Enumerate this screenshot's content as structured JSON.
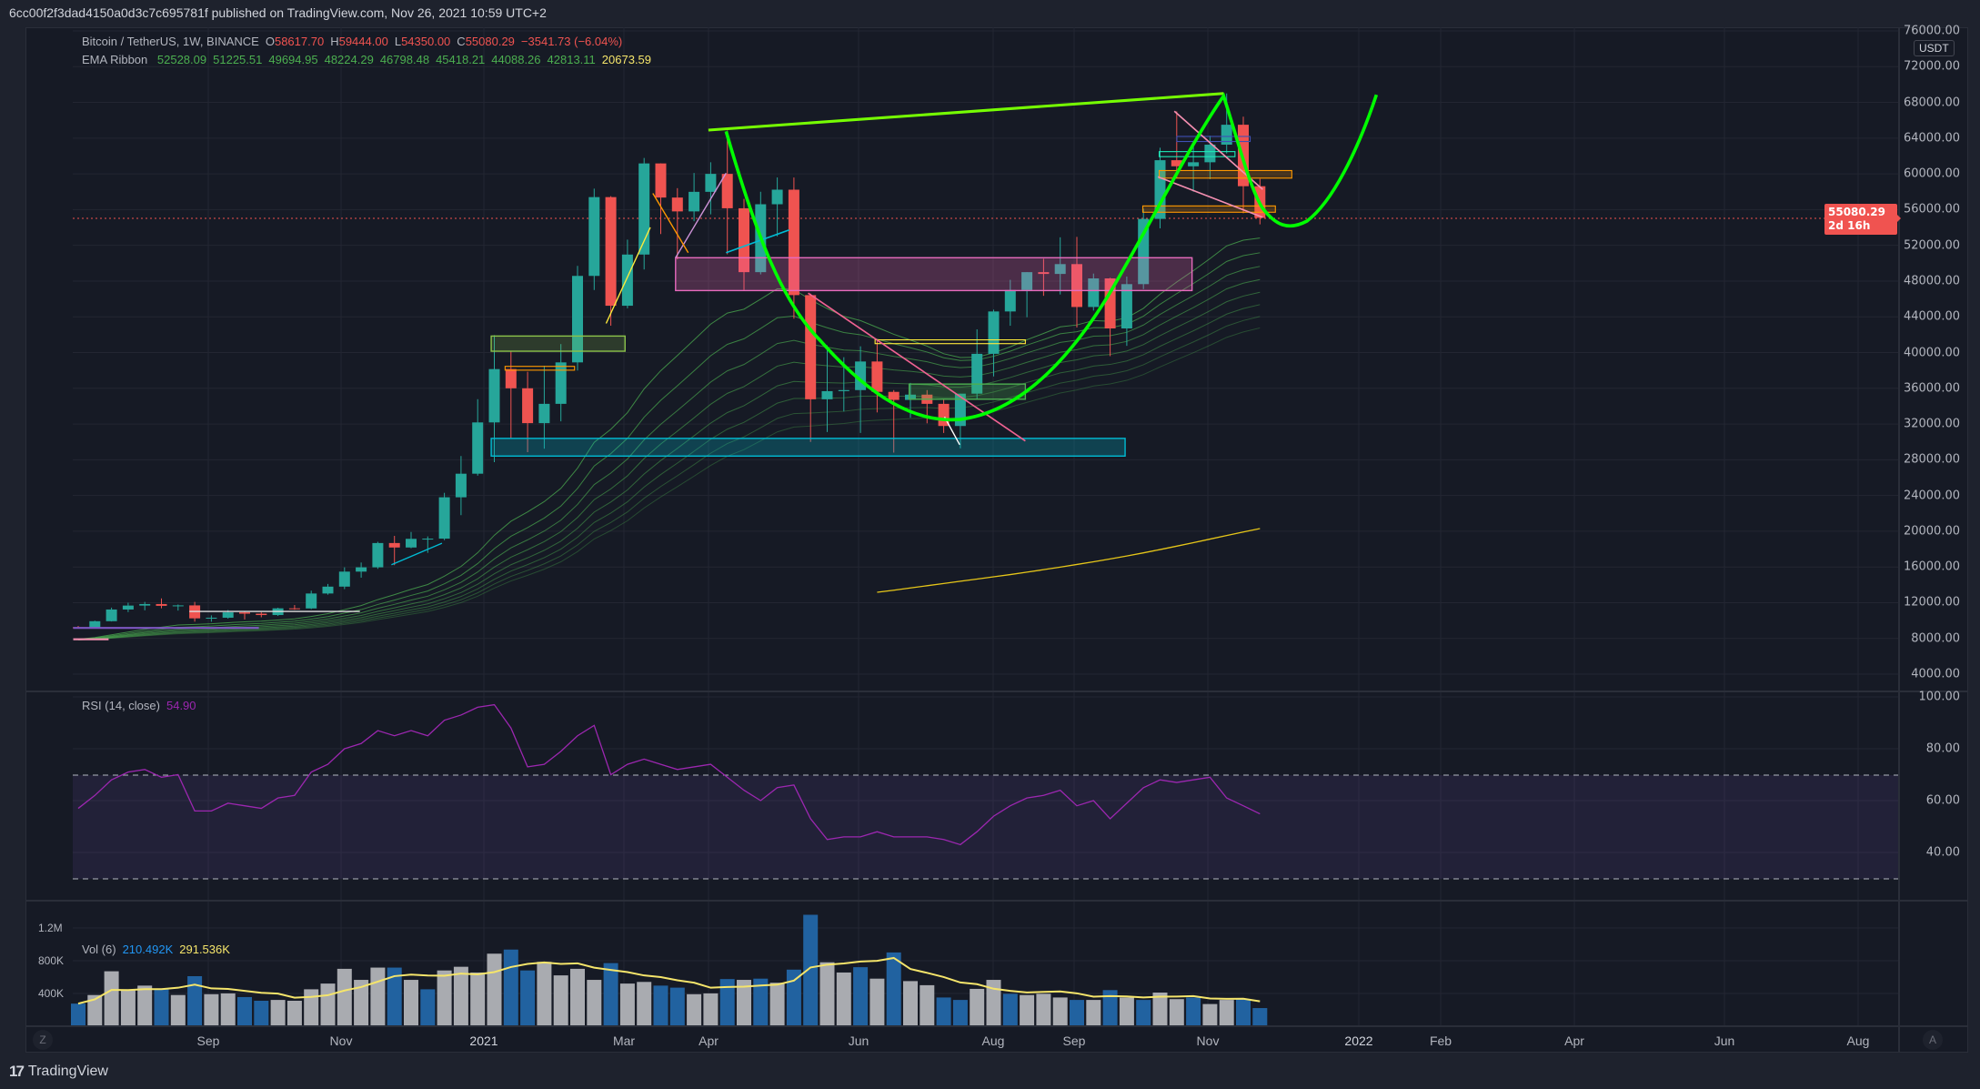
{
  "header": {
    "text": "6cc00f2f3dad4150a0d3c7c695781f published on TradingView.com, Nov 26, 2021 10:59 UTC+2"
  },
  "legend": {
    "symbol": "Bitcoin / TetherUS, 1W, BINANCE",
    "o_label": "O",
    "o": "58617.70",
    "h_label": "H",
    "h": "59444.00",
    "l_label": "L",
    "l": "54350.00",
    "c_label": "C",
    "c": "55080.29",
    "change": "−3541.73 (−6.04%)",
    "ema_label": "EMA Ribbon",
    "ema_values": [
      "52528.09",
      "51225.51",
      "49694.95",
      "48224.29",
      "46798.48",
      "45418.21",
      "44088.26",
      "42813.11",
      "20673.59"
    ]
  },
  "rsi_legend": {
    "label": "RSI (14, close)",
    "value": "54.90"
  },
  "vol_legend": {
    "label": "Vol (6)",
    "value": "210.492K",
    "ma": "291.536K"
  },
  "price_axis": {
    "currency": "USDT",
    "ticks": [
      "76000.00",
      "72000.00",
      "68000.00",
      "64000.00",
      "60000.00",
      "56000.00",
      "52000.00",
      "48000.00",
      "44000.00",
      "40000.00",
      "36000.00",
      "32000.00",
      "28000.00",
      "24000.00",
      "20000.00",
      "16000.00",
      "12000.00",
      "8000.00",
      "4000.00"
    ],
    "current_price": "55080.29",
    "countdown": "2d 16h"
  },
  "rsi_axis": {
    "ticks": [
      "100.00",
      "80.00",
      "60.00",
      "40.00"
    ]
  },
  "vol_axis": {
    "ticks": [
      "1.2M",
      "800K",
      "400K"
    ]
  },
  "time_axis": {
    "labels": [
      "Sep",
      "Nov",
      "2021",
      "Mar",
      "Apr",
      "Jun",
      "Aug",
      "Sep",
      "Nov",
      "2022",
      "Feb",
      "Apr",
      "Jun",
      "Aug"
    ]
  },
  "buttons": {
    "z": "Z",
    "a": "A"
  },
  "footer": {
    "brand": "TradingView"
  },
  "colors": {
    "up": "#26a69a",
    "down": "#ef5350",
    "rsi": "#9c27b0",
    "vol_blue": "#2162a0",
    "vol_gray": "#a9abb0",
    "vol_ma": "#f5e56b",
    "ema": "#4caf50",
    "ema_long": "#e6c619",
    "cup": "#00ff00"
  },
  "chart_data": {
    "type": "candlestick",
    "title": "Bitcoin / TetherUS, 1W, BINANCE",
    "timeframe": "1W",
    "ylim": [
      4000,
      76000
    ],
    "ohlc": [
      [
        9250,
        9400,
        9100,
        9160
      ],
      [
        9160,
        9990,
        9140,
        9930
      ],
      [
        9930,
        11450,
        9900,
        11240
      ],
      [
        11240,
        12000,
        10950,
        11680
      ],
      [
        11680,
        12090,
        11150,
        11850
      ],
      [
        11850,
        12480,
        11370,
        11650
      ],
      [
        11650,
        11800,
        11120,
        11700
      ],
      [
        11700,
        12090,
        9880,
        10250
      ],
      [
        10250,
        10580,
        9870,
        10320
      ],
      [
        10320,
        11180,
        10210,
        10920
      ],
      [
        10920,
        10990,
        10130,
        10770
      ],
      [
        10770,
        10950,
        10370,
        10620
      ],
      [
        10620,
        11440,
        10520,
        11370
      ],
      [
        11370,
        11740,
        11210,
        11360
      ],
      [
        11360,
        13350,
        11280,
        13030
      ],
      [
        13030,
        14100,
        12900,
        13800
      ],
      [
        13800,
        15960,
        13520,
        15480
      ],
      [
        15480,
        16500,
        14800,
        15960
      ],
      [
        15960,
        18820,
        15790,
        18680
      ],
      [
        18680,
        19480,
        16200,
        18180
      ],
      [
        18180,
        19920,
        18100,
        19150
      ],
      [
        19150,
        19420,
        17580,
        19170
      ],
      [
        19170,
        24300,
        19000,
        23800
      ],
      [
        23800,
        28420,
        21800,
        26440
      ],
      [
        26440,
        34780,
        26220,
        32180
      ],
      [
        32180,
        41950,
        27730,
        38150
      ],
      [
        38150,
        40100,
        30420,
        36000
      ],
      [
        36000,
        37850,
        28850,
        32100
      ],
      [
        32100,
        38530,
        29240,
        34260
      ],
      [
        34260,
        40950,
        32300,
        38900
      ],
      [
        38900,
        49700,
        37990,
        48580
      ],
      [
        48580,
        58350,
        47000,
        57400
      ],
      [
        57400,
        57500,
        43000,
        45240
      ],
      [
        45240,
        52640,
        44950,
        50970
      ],
      [
        50970,
        61780,
        49300,
        61170
      ],
      [
        61170,
        61180,
        53270,
        57350
      ],
      [
        57350,
        58400,
        50430,
        55800
      ],
      [
        55800,
        60100,
        54700,
        57990
      ],
      [
        57990,
        61300,
        55470,
        60000
      ],
      [
        60000,
        64850,
        51000,
        56150
      ],
      [
        56150,
        57200,
        47000,
        49000
      ],
      [
        49000,
        58000,
        48750,
        56600
      ],
      [
        56600,
        59600,
        53000,
        58230
      ],
      [
        58230,
        59590,
        43800,
        46430
      ],
      [
        46430,
        46600,
        30000,
        34770
      ],
      [
        34770,
        40800,
        31100,
        35680
      ],
      [
        35680,
        39480,
        33400,
        35800
      ],
      [
        35800,
        40700,
        31000,
        39000
      ],
      [
        39000,
        41300,
        33300,
        35600
      ],
      [
        35600,
        35800,
        28800,
        34700
      ],
      [
        34700,
        36600,
        32700,
        35290
      ],
      [
        35290,
        35800,
        32080,
        34260
      ],
      [
        34260,
        34700,
        31000,
        31780
      ],
      [
        31780,
        35400,
        29280,
        35400
      ],
      [
        35400,
        42600,
        34800,
        39860
      ],
      [
        39860,
        44800,
        37330,
        44600
      ],
      [
        44600,
        48140,
        43000,
        47000
      ],
      [
        47000,
        49000,
        43950,
        49000
      ],
      [
        49000,
        50500,
        46350,
        48800
      ],
      [
        48800,
        52900,
        46500,
        49900
      ],
      [
        49900,
        52950,
        42800,
        45100
      ],
      [
        45100,
        48840,
        44700,
        48300
      ],
      [
        48300,
        48370,
        39600,
        42700
      ],
      [
        42700,
        48500,
        40750,
        47660
      ],
      [
        47660,
        56100,
        47100,
        54960
      ],
      [
        54960,
        62930,
        53900,
        61530
      ],
      [
        61530,
        67000,
        59500,
        60850
      ],
      [
        60850,
        63700,
        58000,
        61300
      ],
      [
        61300,
        64270,
        59400,
        63270
      ],
      [
        63270,
        69000,
        62280,
        65500
      ],
      [
        65500,
        66400,
        55600,
        58620
      ],
      [
        58617.7,
        59444,
        54350,
        55080.29
      ]
    ],
    "ema_periods": [
      20,
      25,
      30,
      35,
      40,
      45,
      50,
      55
    ],
    "ema_long": {
      "start_index": 48,
      "values": [
        13170,
        13400,
        13650,
        13900,
        14150,
        14400,
        14650,
        14900,
        15150,
        15420,
        15700,
        15980,
        16280,
        16580,
        16900,
        17230,
        17580,
        17950,
        18330,
        18720,
        19120,
        19520,
        19920,
        20300
      ]
    },
    "rsi": {
      "period": 14,
      "upper": 70,
      "lower": 30,
      "values": [
        57,
        62,
        68,
        71,
        72,
        69,
        70,
        56,
        56,
        59,
        58,
        57,
        61,
        62,
        71,
        74,
        80,
        82,
        87,
        85,
        87,
        85,
        91,
        93,
        96,
        97,
        88,
        73,
        74,
        79,
        85,
        89,
        70,
        74,
        76,
        74,
        72,
        73,
        74,
        69,
        64,
        60,
        65,
        66,
        53,
        45,
        46,
        46,
        48,
        46,
        46,
        46,
        45,
        43,
        48,
        54,
        58,
        61,
        62,
        64,
        58,
        60,
        53,
        59,
        65,
        68,
        67,
        68,
        69,
        61,
        58,
        54.9
      ]
    },
    "volume_k": [
      265,
      370,
      660,
      430,
      485,
      440,
      370,
      600,
      380,
      390,
      345,
      300,
      310,
      300,
      440,
      510,
      690,
      555,
      705,
      705,
      555,
      440,
      670,
      715,
      645,
      875,
      925,
      670,
      775,
      610,
      690,
      555,
      760,
      510,
      530,
      485,
      460,
      380,
      390,
      565,
      555,
      570,
      520,
      680,
      1350,
      770,
      645,
      710,
      570,
      890,
      540,
      490,
      340,
      310,
      445,
      555,
      385,
      370,
      385,
      340,
      310,
      310,
      430,
      340,
      310,
      400,
      320,
      340,
      260,
      310,
      320,
      210.492
    ],
    "volume_color": [
      "b",
      "g",
      "g",
      "g",
      "g",
      "b",
      "g",
      "b",
      "g",
      "g",
      "b",
      "b",
      "g",
      "g",
      "g",
      "g",
      "g",
      "g",
      "g",
      "b",
      "g",
      "b",
      "g",
      "g",
      "g",
      "g",
      "b",
      "b",
      "g",
      "g",
      "g",
      "g",
      "b",
      "g",
      "g",
      "b",
      "b",
      "g",
      "g",
      "b",
      "g",
      "b",
      "g",
      "b",
      "b",
      "g",
      "g",
      "b",
      "g",
      "b",
      "g",
      "g",
      "b",
      "b",
      "g",
      "g",
      "b",
      "g",
      "g",
      "g",
      "b",
      "g",
      "b",
      "g",
      "b",
      "g",
      "g",
      "b",
      "g",
      "g",
      "b",
      "b"
    ],
    "volume_ma_period": 6
  }
}
